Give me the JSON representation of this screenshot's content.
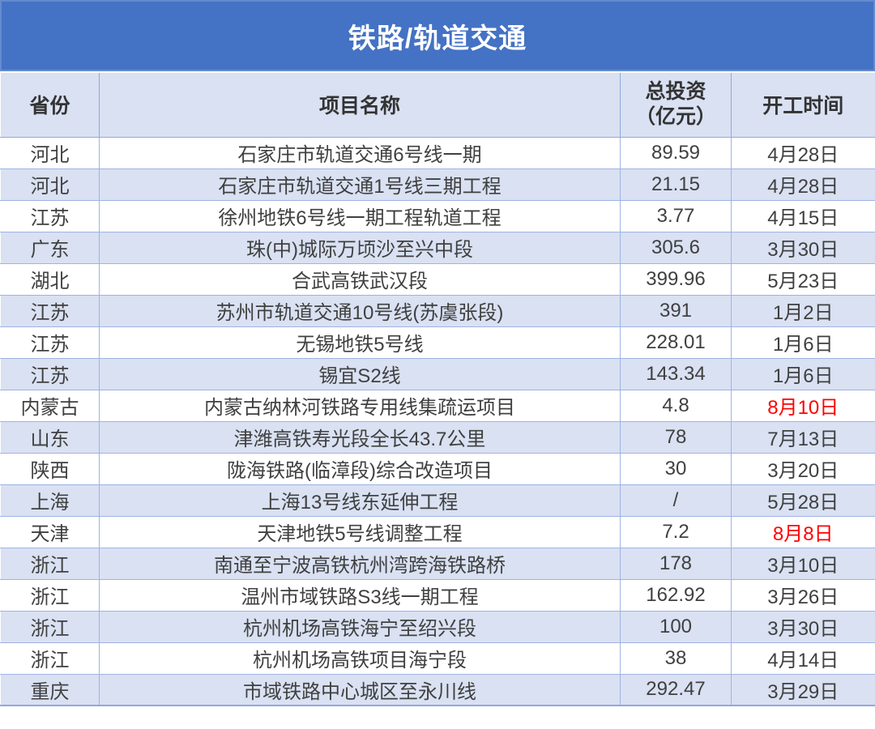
{
  "title": "铁路/轨道交通",
  "colors": {
    "title_bg": "#4472C4",
    "title_text": "#FFFFFF",
    "header_bg": "#D9E1F2",
    "row_bg": "#FFFFFF",
    "row_alt_bg": "#D9E1F2",
    "border": "#8FA9DC",
    "text": "#404040",
    "highlight_date": "#FF0000"
  },
  "chart_data": {
    "type": "table",
    "title": "铁路/轨道交通",
    "columns": [
      "省份",
      "项目名称",
      "总投资（亿元）",
      "开工时间"
    ],
    "header": {
      "province": "省份",
      "project": "项目名称",
      "investment_line1": "总投资",
      "investment_line2": "（亿元）",
      "start_date": "开工时间"
    },
    "rows": [
      {
        "province": "河北",
        "project": "石家庄市轨道交通6号线一期",
        "investment": "89.59",
        "start_date": "4月28日",
        "date_highlighted": false
      },
      {
        "province": "河北",
        "project": "石家庄市轨道交通1号线三期工程",
        "investment": "21.15",
        "start_date": "4月28日",
        "date_highlighted": false
      },
      {
        "province": "江苏",
        "project": "徐州地铁6号线一期工程轨道工程",
        "investment": "3.77",
        "start_date": "4月15日",
        "date_highlighted": false
      },
      {
        "province": "广东",
        "project": "珠(中)城际万顷沙至兴中段",
        "investment": "305.6",
        "start_date": "3月30日",
        "date_highlighted": false
      },
      {
        "province": "湖北",
        "project": "合武高铁武汉段",
        "investment": "399.96",
        "start_date": "5月23日",
        "date_highlighted": false
      },
      {
        "province": "江苏",
        "project": "苏州市轨道交通10号线(苏虞张段)",
        "investment": "391",
        "start_date": "1月2日",
        "date_highlighted": false
      },
      {
        "province": "江苏",
        "project": "无锡地铁5号线",
        "investment": "228.01",
        "start_date": "1月6日",
        "date_highlighted": false
      },
      {
        "province": "江苏",
        "project": "锡宜S2线",
        "investment": "143.34",
        "start_date": "1月6日",
        "date_highlighted": false
      },
      {
        "province": "内蒙古",
        "project": "内蒙古纳林河铁路专用线集疏运项目",
        "investment": "4.8",
        "start_date": "8月10日",
        "date_highlighted": true
      },
      {
        "province": "山东",
        "project": "津潍高铁寿光段全长43.7公里",
        "investment": "78",
        "start_date": "7月13日",
        "date_highlighted": false
      },
      {
        "province": "陕西",
        "project": "陇海铁路(临漳段)综合改造项目",
        "investment": "30",
        "start_date": "3月20日",
        "date_highlighted": false
      },
      {
        "province": "上海",
        "project": "上海13号线东延伸工程",
        "investment": "/",
        "start_date": "5月28日",
        "date_highlighted": false
      },
      {
        "province": "天津",
        "project": "天津地铁5号线调整工程",
        "investment": "7.2",
        "start_date": "8月8日",
        "date_highlighted": true
      },
      {
        "province": "浙江",
        "project": "南通至宁波高铁杭州湾跨海铁路桥",
        "investment": "178",
        "start_date": "3月10日",
        "date_highlighted": false
      },
      {
        "province": "浙江",
        "project": "温州市域铁路S3线一期工程",
        "investment": "162.92",
        "start_date": "3月26日",
        "date_highlighted": false
      },
      {
        "province": "浙江",
        "project": "杭州机场高铁海宁至绍兴段",
        "investment": "100",
        "start_date": "3月30日",
        "date_highlighted": false
      },
      {
        "province": "浙江",
        "project": "杭州机场高铁项目海宁段",
        "investment": "38",
        "start_date": "4月14日",
        "date_highlighted": false
      },
      {
        "province": "重庆",
        "project": "市域铁路中心城区至永川线",
        "investment": "292.47",
        "start_date": "3月29日",
        "date_highlighted": false
      }
    ]
  }
}
